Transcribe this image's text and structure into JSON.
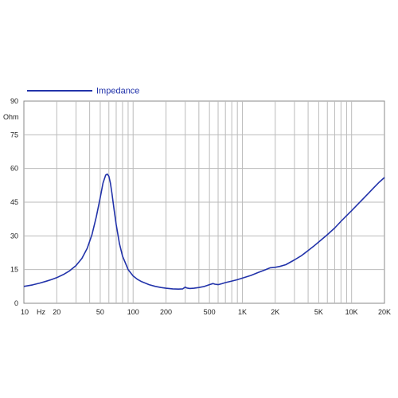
{
  "chart_data": {
    "type": "line",
    "x_scale": "log",
    "xlim": [
      10,
      20000
    ],
    "ylim": [
      0,
      90
    ],
    "grid": true,
    "legend_position": "top-left",
    "ylabel": "Ohm",
    "xlabel": "Hz",
    "x_tick_labels": [
      {
        "value": 10,
        "label": "10"
      },
      {
        "value": 20,
        "label": "20"
      },
      {
        "value": 50,
        "label": "50"
      },
      {
        "value": 100,
        "label": "100"
      },
      {
        "value": 200,
        "label": "200"
      },
      {
        "value": 500,
        "label": "500"
      },
      {
        "value": 1000,
        "label": "1K"
      },
      {
        "value": 2000,
        "label": "2K"
      },
      {
        "value": 5000,
        "label": "5K"
      },
      {
        "value": 10000,
        "label": "10K"
      },
      {
        "value": 20000,
        "label": "20K"
      }
    ],
    "y_tick_labels": [
      {
        "value": 0,
        "label": "0"
      },
      {
        "value": 15,
        "label": "15"
      },
      {
        "value": 30,
        "label": "30"
      },
      {
        "value": 45,
        "label": "45"
      },
      {
        "value": 60,
        "label": "60"
      },
      {
        "value": 75,
        "label": "75"
      },
      {
        "value": 90,
        "label": "90"
      }
    ],
    "series": [
      {
        "name": "Impedance",
        "color": "#2233aa",
        "x": [
          10,
          12,
          14,
          16,
          18,
          20,
          23,
          26,
          30,
          34,
          38,
          42,
          46,
          50,
          53,
          56,
          58,
          60,
          62,
          64,
          67,
          70,
          75,
          80,
          90,
          100,
          110,
          120,
          140,
          160,
          180,
          200,
          230,
          260,
          285,
          300,
          310,
          330,
          360,
          400,
          450,
          500,
          540,
          560,
          600,
          650,
          700,
          800,
          900,
          1000,
          1200,
          1400,
          1600,
          1800,
          2000,
          2200,
          2500,
          3000,
          3500,
          4000,
          4500,
          5000,
          6000,
          7000,
          8000,
          9000,
          10000,
          12000,
          14000,
          16000,
          18000,
          20000
        ],
        "y": [
          7.5,
          8.2,
          9.0,
          9.8,
          10.6,
          11.4,
          12.8,
          14.3,
          16.8,
          20.0,
          24.5,
          30.5,
          38.5,
          47.0,
          53.5,
          57.0,
          57.5,
          56.5,
          53.5,
          49.0,
          41.5,
          35.0,
          26.5,
          21.0,
          15.0,
          12.2,
          10.6,
          9.6,
          8.3,
          7.5,
          7.0,
          6.7,
          6.4,
          6.3,
          6.4,
          7.2,
          6.8,
          6.6,
          6.7,
          7.0,
          7.5,
          8.3,
          8.8,
          8.5,
          8.3,
          8.7,
          9.2,
          9.9,
          10.5,
          11.2,
          12.4,
          13.7,
          14.8,
          15.8,
          16.0,
          16.4,
          17.2,
          19.3,
          21.3,
          23.5,
          25.4,
          27.3,
          30.5,
          33.5,
          36.5,
          39.0,
          41.2,
          45.2,
          48.5,
          51.5,
          54.0,
          56.0
        ]
      }
    ]
  }
}
